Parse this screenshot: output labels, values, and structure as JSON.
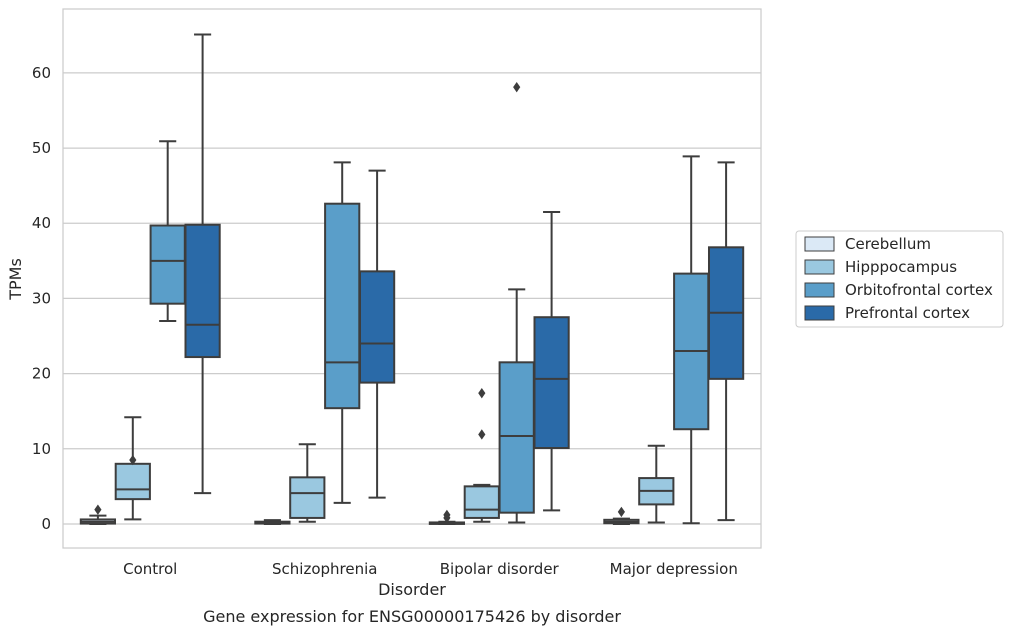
{
  "chart_data": {
    "type": "box",
    "title": "Gene expression for ENSG00000175426 by disorder",
    "xlabel": "Disorder",
    "ylabel": "TPMs",
    "ylim": [
      -3.2,
      68.5
    ],
    "yticks": [
      0,
      10,
      20,
      30,
      40,
      50,
      60
    ],
    "grid": "horizontal",
    "legend_position": "right",
    "categories": [
      "Control",
      "Schizophrenia",
      "Bipolar disorder",
      "Major depression"
    ],
    "series": [
      {
        "name": "Cerebellum",
        "color": "#dbe9f6",
        "boxes": [
          {
            "whisker_low": 0.0,
            "q1": 0.05,
            "median": 0.3,
            "q3": 0.6,
            "whisker_high": 1.1,
            "outliers": [
              1.9
            ]
          },
          {
            "whisker_low": 0.0,
            "q1": 0.05,
            "median": 0.15,
            "q3": 0.3,
            "whisker_high": 0.5,
            "outliers": []
          },
          {
            "whisker_low": 0.0,
            "q1": 0.05,
            "median": 0.1,
            "q3": 0.2,
            "whisker_high": 0.3,
            "outliers": [
              1.2,
              0.8
            ]
          },
          {
            "whisker_low": 0.0,
            "q1": 0.1,
            "median": 0.3,
            "q3": 0.55,
            "whisker_high": 0.7,
            "outliers": [
              1.6
            ]
          }
        ]
      },
      {
        "name": "Hipppocampus",
        "color": "#9ac8e0",
        "boxes": [
          {
            "whisker_low": 0.6,
            "q1": 3.3,
            "median": 4.6,
            "q3": 8.0,
            "whisker_high": 14.2,
            "outliers": [
              8.5
            ]
          },
          {
            "whisker_low": 0.3,
            "q1": 0.8,
            "median": 4.1,
            "q3": 6.2,
            "whisker_high": 10.6,
            "outliers": []
          },
          {
            "whisker_low": 0.3,
            "q1": 0.8,
            "median": 1.9,
            "q3": 5.0,
            "whisker_high": 5.2,
            "outliers": [
              17.4,
              11.9
            ]
          },
          {
            "whisker_low": 0.2,
            "q1": 2.6,
            "median": 4.4,
            "q3": 6.1,
            "whisker_high": 10.4,
            "outliers": []
          }
        ]
      },
      {
        "name": "Orbitofrontal cortex",
        "color": "#5a9ec9",
        "boxes": [
          {
            "whisker_low": 27.0,
            "q1": 29.3,
            "median": 35.0,
            "q3": 39.7,
            "whisker_high": 50.9,
            "outliers": []
          },
          {
            "whisker_low": 2.8,
            "q1": 15.4,
            "median": 21.5,
            "q3": 42.6,
            "whisker_high": 48.1,
            "outliers": []
          },
          {
            "whisker_low": 0.2,
            "q1": 1.5,
            "median": 11.7,
            "q3": 21.5,
            "whisker_high": 31.2,
            "outliers": [
              58.1
            ]
          },
          {
            "whisker_low": 0.1,
            "q1": 12.6,
            "median": 23.0,
            "q3": 33.3,
            "whisker_high": 48.9,
            "outliers": []
          }
        ]
      },
      {
        "name": "Prefrontal cortex",
        "color": "#2a6aa8",
        "boxes": [
          {
            "whisker_low": 4.1,
            "q1": 22.2,
            "median": 26.5,
            "q3": 39.8,
            "whisker_high": 65.1,
            "outliers": []
          },
          {
            "whisker_low": 3.5,
            "q1": 18.8,
            "median": 24.0,
            "q3": 33.6,
            "whisker_high": 47.0,
            "outliers": []
          },
          {
            "whisker_low": 1.8,
            "q1": 10.1,
            "median": 19.3,
            "q3": 27.5,
            "whisker_high": 41.5,
            "outliers": []
          },
          {
            "whisker_low": 0.5,
            "q1": 19.3,
            "median": 28.1,
            "q3": 36.8,
            "whisker_high": 48.1,
            "outliers": []
          }
        ]
      }
    ]
  }
}
